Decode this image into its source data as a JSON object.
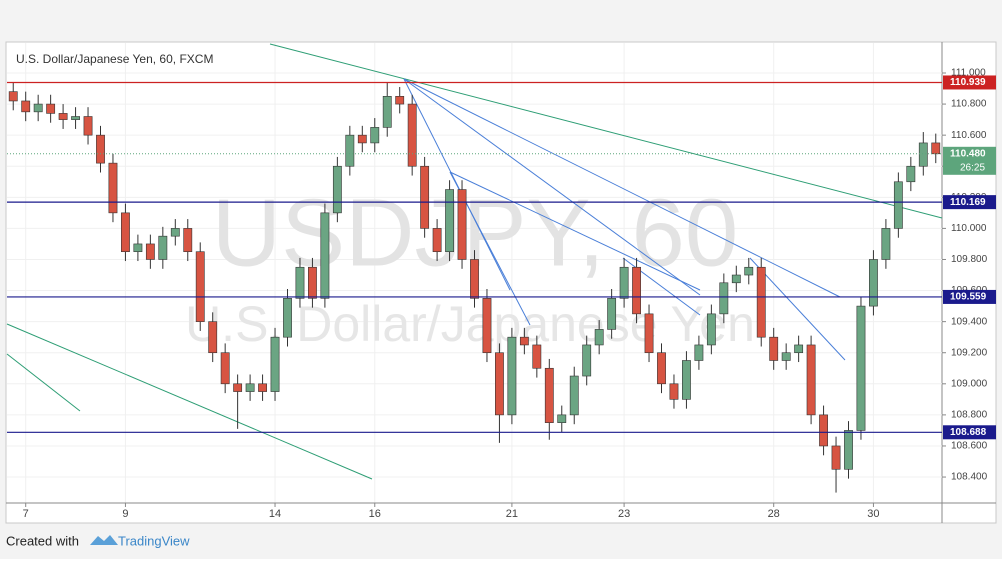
{
  "chart_data": {
    "type": "candlestick",
    "title": "U.S. Dollar/Japanese Yen, 60, FXCM",
    "watermark": "USDJPY, 60",
    "watermark_subtitle": "U.S. Dollar/Japanese Yen",
    "categories": [
      null,
      "7",
      null,
      null,
      null,
      null,
      null,
      null,
      null,
      "9",
      null,
      null,
      null,
      null,
      null,
      null,
      null,
      null,
      null,
      null,
      null,
      "14",
      null,
      null,
      null,
      null,
      null,
      null,
      null,
      "16",
      null,
      null,
      null,
      null,
      null,
      null,
      null,
      null,
      null,
      null,
      "21",
      null,
      null,
      null,
      null,
      null,
      null,
      null,
      null,
      "23",
      null,
      null,
      null,
      null,
      null,
      null,
      null,
      null,
      null,
      null,
      null,
      "28",
      null,
      null,
      null,
      null,
      null,
      null,
      null,
      "30",
      null,
      null,
      null,
      null,
      null
    ],
    "open": [
      110.88,
      110.82,
      110.75,
      110.8,
      110.74,
      110.7,
      110.72,
      110.6,
      110.42,
      110.1,
      109.85,
      109.9,
      109.8,
      109.95,
      110.0,
      109.85,
      109.4,
      109.2,
      109.0,
      108.95,
      109.0,
      108.95,
      109.3,
      109.55,
      109.75,
      109.55,
      110.1,
      110.4,
      110.6,
      110.55,
      110.65,
      110.85,
      110.8,
      110.4,
      110.0,
      109.85,
      110.25,
      109.8,
      109.55,
      109.2,
      108.8,
      109.3,
      109.25,
      109.1,
      108.75,
      108.8,
      109.05,
      109.25,
      109.35,
      109.55,
      109.75,
      109.45,
      109.2,
      109.0,
      108.9,
      109.15,
      109.25,
      109.45,
      109.65,
      109.7,
      109.75,
      109.3,
      109.15,
      109.2,
      109.25,
      108.8,
      108.6,
      108.45,
      108.7,
      109.5,
      109.8,
      110.0,
      110.3,
      110.4,
      110.55
    ],
    "high": [
      110.94,
      110.88,
      110.86,
      110.86,
      110.8,
      110.78,
      110.78,
      110.66,
      110.48,
      110.16,
      109.96,
      109.96,
      110.01,
      110.06,
      110.06,
      109.91,
      109.46,
      109.26,
      109.06,
      109.06,
      109.06,
      109.36,
      109.61,
      109.81,
      109.81,
      110.16,
      110.46,
      110.66,
      110.66,
      110.71,
      110.94,
      110.91,
      110.86,
      110.46,
      110.06,
      110.31,
      110.31,
      109.86,
      109.61,
      109.26,
      109.36,
      109.36,
      109.31,
      109.16,
      108.86,
      109.11,
      109.31,
      109.41,
      109.61,
      109.81,
      109.81,
      109.51,
      109.26,
      109.06,
      109.21,
      109.31,
      109.51,
      109.71,
      109.76,
      109.81,
      109.81,
      109.36,
      109.26,
      109.31,
      109.31,
      108.86,
      108.66,
      108.76,
      109.56,
      109.86,
      110.06,
      110.36,
      110.46,
      110.62,
      110.61
    ],
    "low": [
      110.76,
      110.69,
      110.69,
      110.68,
      110.64,
      110.64,
      110.54,
      110.36,
      110.04,
      109.79,
      109.79,
      109.74,
      109.74,
      109.89,
      109.79,
      109.34,
      109.14,
      108.94,
      108.71,
      108.89,
      108.89,
      108.89,
      109.24,
      109.49,
      109.49,
      109.49,
      110.04,
      110.34,
      110.49,
      110.49,
      110.59,
      110.74,
      110.34,
      109.94,
      109.79,
      109.79,
      109.74,
      109.49,
      109.14,
      108.62,
      108.74,
      109.19,
      109.04,
      108.64,
      108.69,
      108.74,
      108.99,
      109.19,
      109.29,
      109.49,
      109.39,
      109.14,
      108.94,
      108.84,
      108.84,
      109.09,
      109.19,
      109.39,
      109.59,
      109.64,
      109.24,
      109.09,
      109.09,
      109.14,
      108.74,
      108.54,
      108.3,
      108.39,
      108.64,
      109.44,
      109.74,
      109.94,
      110.24,
      110.34,
      110.42
    ],
    "close": [
      110.82,
      110.75,
      110.8,
      110.74,
      110.7,
      110.72,
      110.6,
      110.42,
      110.1,
      109.85,
      109.9,
      109.8,
      109.95,
      110.0,
      109.85,
      109.4,
      109.2,
      109.0,
      108.95,
      109.0,
      108.95,
      109.3,
      109.55,
      109.75,
      109.55,
      110.1,
      110.4,
      110.6,
      110.55,
      110.65,
      110.85,
      110.8,
      110.4,
      110.0,
      109.85,
      110.25,
      109.8,
      109.55,
      109.2,
      108.8,
      109.3,
      109.25,
      109.1,
      108.75,
      108.8,
      109.05,
      109.25,
      109.35,
      109.55,
      109.75,
      109.45,
      109.2,
      109.0,
      108.9,
      109.15,
      109.25,
      109.45,
      109.65,
      109.7,
      109.75,
      109.3,
      109.15,
      109.2,
      109.25,
      108.8,
      108.6,
      108.45,
      108.7,
      109.5,
      109.8,
      110.0,
      110.3,
      110.4,
      110.55,
      110.48
    ],
    "up_color": "#6ba583",
    "down_color": "#d75442",
    "ylim": [
      108.233,
      111.193
    ],
    "yticks": [
      {
        "value": 108.4,
        "label": "108.400"
      },
      {
        "value": 108.6,
        "label": "108.600"
      },
      {
        "value": 108.8,
        "label": "108.800"
      },
      {
        "value": 109.0,
        "label": "109.000"
      },
      {
        "value": 109.2,
        "label": "109.200"
      },
      {
        "value": 109.4,
        "label": "109.400"
      },
      {
        "value": 109.6,
        "label": "109.600"
      },
      {
        "value": 109.8,
        "label": "109.800"
      },
      {
        "value": 110.0,
        "label": "110.000"
      },
      {
        "value": 110.2,
        "label": "110.200"
      },
      {
        "value": 110.4,
        "label": "110.400"
      },
      {
        "value": 110.6,
        "label": "110.600"
      },
      {
        "value": 110.8,
        "label": "110.800"
      },
      {
        "value": 111.0,
        "label": "111.000"
      }
    ],
    "price_lines": [
      {
        "value": 110.939,
        "color": "#cc2222"
      },
      {
        "value": 110.169,
        "color": "#1a1a8c"
      },
      {
        "value": 109.559,
        "color": "#1a1a8c"
      },
      {
        "value": 108.688,
        "color": "#1a1a8c"
      }
    ],
    "last_price": {
      "value": 110.48,
      "label": "110.480",
      "color": "#5da57c"
    },
    "countdown": "26:25"
  },
  "footer": {
    "created_with": "Created with",
    "brand": "TradingView"
  }
}
